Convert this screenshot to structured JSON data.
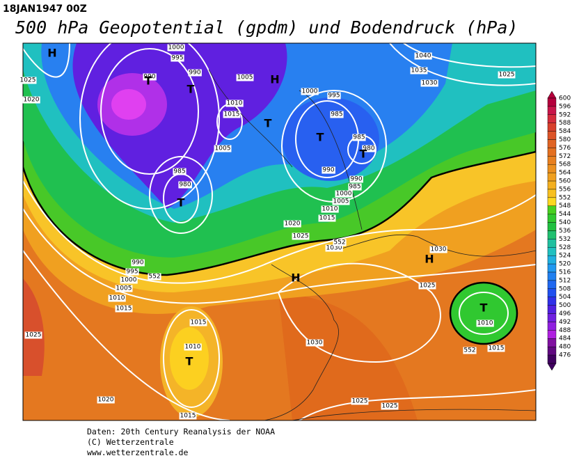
{
  "header": {
    "timestamp": "18JAN1947 00Z",
    "title": "500 hPa Geopotential (gpdm) und Bodendruck (hPa)"
  },
  "map": {
    "labels": [
      "H",
      "1025",
      "1020",
      "1000",
      "995",
      "990",
      "T",
      "T",
      "990",
      "1005",
      "H",
      "1010",
      "1015",
      "1005",
      "T",
      "1000",
      "995",
      "985",
      "T",
      "985",
      "980",
      "T",
      "990",
      "990",
      "985",
      "1000",
      "1005",
      "1010",
      "1015",
      "985",
      "980",
      "T",
      "1020",
      "1025",
      "1030",
      "552",
      "552",
      "990",
      "995",
      "1000",
      "1005",
      "1010",
      "1015",
      "H",
      "1030",
      "H",
      "1025",
      "1030",
      "1015",
      "1010",
      "T",
      "1025",
      "T",
      "1010",
      "1015",
      "552",
      "1020",
      "1015",
      "1025",
      "1025",
      "1040",
      "1035",
      "1030",
      "1025"
    ]
  },
  "colorbar": {
    "levels": [
      600,
      596,
      592,
      588,
      584,
      580,
      576,
      572,
      568,
      564,
      560,
      556,
      552,
      548,
      544,
      540,
      536,
      532,
      528,
      524,
      520,
      516,
      512,
      508,
      504,
      500,
      496,
      492,
      488,
      484,
      480,
      476
    ],
    "colors": [
      "#b4003c",
      "#c8164a",
      "#d42c3c",
      "#d8402c",
      "#dc5428",
      "#e06424",
      "#e47020",
      "#e88020",
      "#ec9020",
      "#f0a020",
      "#f4b020",
      "#f8c020",
      "#fcd820",
      "#48d020",
      "#30c830",
      "#20c040",
      "#20c070",
      "#20c0a0",
      "#20c0c0",
      "#20b0e0",
      "#2098f0",
      "#2080f0",
      "#2068f0",
      "#2050f0",
      "#3030e8",
      "#5020e0",
      "#7020e0",
      "#9020e0",
      "#b020e0",
      "#8010a0",
      "#600880",
      "#400060"
    ]
  },
  "footer": {
    "lines": [
      "Daten: 20th Century Reanalysis der NOAA",
      "(C) Wetterzentrale",
      "www.wetterzentrale.de"
    ]
  }
}
